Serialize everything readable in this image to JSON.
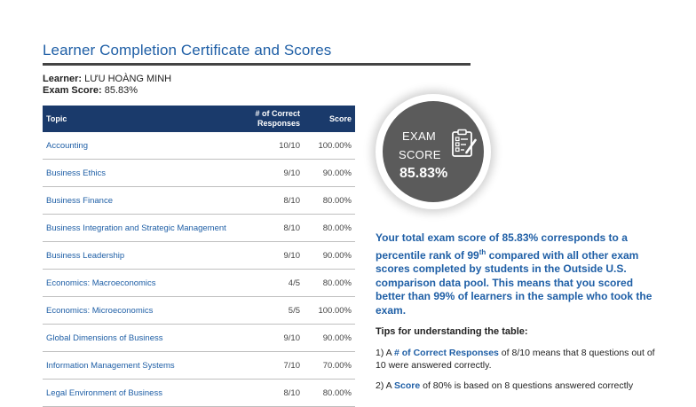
{
  "title": "Learner Completion Certificate and Scores",
  "learner": {
    "label": "Learner:",
    "value": "LƯU HOÀNG MINH"
  },
  "exam_score": {
    "label": "Exam Score:",
    "value": "85.83%"
  },
  "table": {
    "headers": {
      "topic": "Topic",
      "correct_line1": "# of Correct",
      "correct_line2": "Responses",
      "score": "Score"
    },
    "rows": [
      {
        "topic": "Accounting",
        "correct": "10/10",
        "score": "100.00%"
      },
      {
        "topic": "Business Ethics",
        "correct": "9/10",
        "score": "90.00%"
      },
      {
        "topic": "Business Finance",
        "correct": "8/10",
        "score": "80.00%"
      },
      {
        "topic": "Business Integration and Strategic Management",
        "correct": "8/10",
        "score": "80.00%"
      },
      {
        "topic": "Business Leadership",
        "correct": "9/10",
        "score": "90.00%"
      },
      {
        "topic": "Economics: Macroeconomics",
        "correct": "4/5",
        "score": "80.00%"
      },
      {
        "topic": "Economics: Microeconomics",
        "correct": "5/5",
        "score": "100.00%"
      },
      {
        "topic": "Global Dimensions of Business",
        "correct": "9/10",
        "score": "90.00%"
      },
      {
        "topic": "Information Management Systems",
        "correct": "7/10",
        "score": "70.00%"
      },
      {
        "topic": "Legal Environment of Business",
        "correct": "8/10",
        "score": "80.00%"
      }
    ]
  },
  "badge": {
    "line1": "EXAM",
    "line2": "SCORE",
    "score": "85.83%",
    "icon": "exam-checklist-icon"
  },
  "summary": {
    "part1": "Your total exam score of 85.83% corresponds to a percentile rank of 99",
    "sup": "th",
    "part2": " compared with all other exam scores completed by students in the Outside U.S. comparison data pool. This means that you scored better than 99% of learners in the sample who took the exam."
  },
  "tips": {
    "heading": "Tips for understanding the table:",
    "tip1_prefix": "1) A ",
    "tip1_term": "# of Correct Responses",
    "tip1_rest": " of 8/10 means that 8 questions out of 10 were answered correctly.",
    "tip2_prefix": "2) A ",
    "tip2_term": "Score",
    "tip2_rest": " of 80% is based on 8 questions answered correctly"
  },
  "colors": {
    "accent": "#1f5fa6",
    "header_bg": "#1a3a6b",
    "badge_bg": "#5b5b5b"
  }
}
